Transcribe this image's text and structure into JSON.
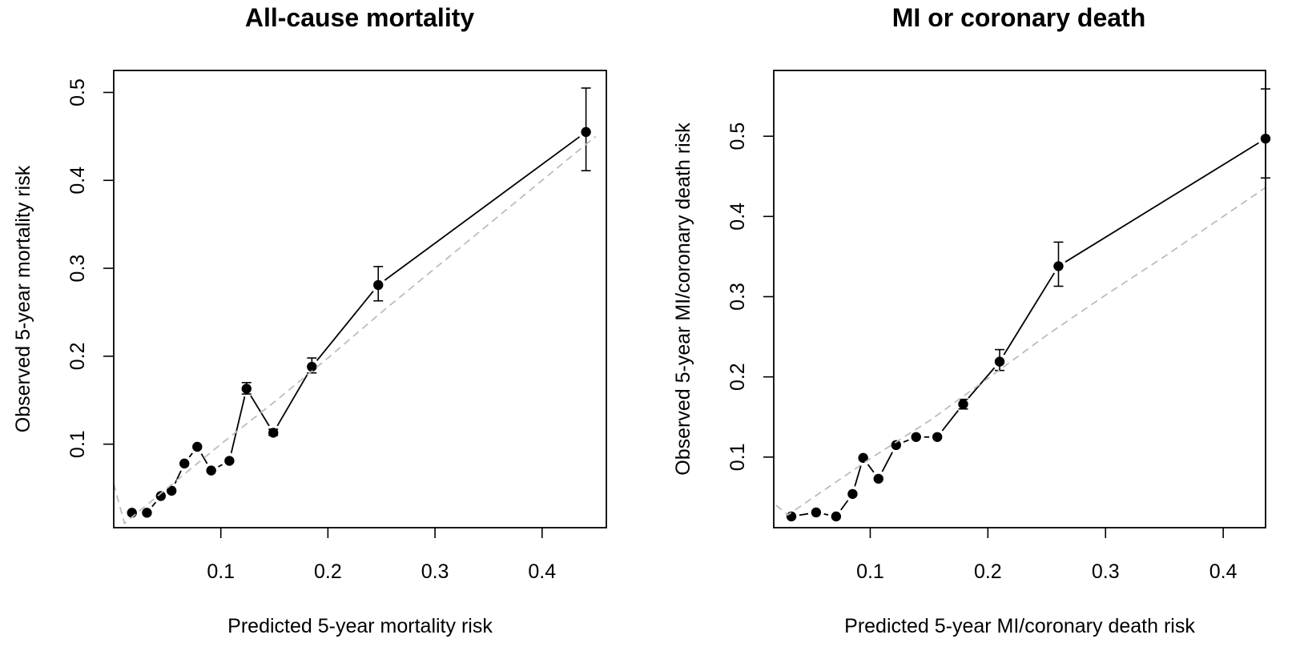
{
  "chart_data": [
    {
      "type": "scatter",
      "title": "All-cause mortality",
      "xlabel": "Predicted 5-year mortality risk",
      "ylabel": "Observed 5-year mortality risk",
      "xlim": [
        0.0,
        0.46
      ],
      "ylim": [
        0.005,
        0.525
      ],
      "xticks": [
        0.1,
        0.2,
        0.3,
        0.4
      ],
      "xtick_labels": [
        "0.1",
        "0.2",
        "0.3",
        "0.4"
      ],
      "yticks": [
        0.1,
        0.2,
        0.3,
        0.4,
        0.5
      ],
      "ytick_labels": [
        "0.1",
        "0.2",
        "0.3",
        "0.4",
        "0.5"
      ],
      "series": [
        {
          "name": "",
          "style": "points-with-error-bars-and-line",
          "color": "#000000",
          "x": [
            0.017,
            0.031,
            0.044,
            0.054,
            0.066,
            0.078,
            0.091,
            0.108,
            0.124,
            0.149,
            0.185,
            0.247,
            0.441
          ],
          "y": [
            0.022,
            0.022,
            0.041,
            0.047,
            0.078,
            0.097,
            0.07,
            0.081,
            0.163,
            0.113,
            0.188,
            0.281,
            0.455
          ],
          "err_low": [
            0.022,
            0.022,
            0.041,
            0.047,
            0.078,
            0.097,
            0.07,
            0.081,
            0.157,
            0.11,
            0.181,
            0.263,
            0.411
          ],
          "err_high": [
            0.022,
            0.022,
            0.041,
            0.047,
            0.078,
            0.097,
            0.07,
            0.081,
            0.17,
            0.117,
            0.198,
            0.302,
            0.505
          ]
        },
        {
          "name": "",
          "style": "dashed-reference",
          "color": "#bdbdbd",
          "x": [
            0.0,
            0.01,
            0.05,
            0.1,
            0.15,
            0.2,
            0.25,
            0.3,
            0.35,
            0.4,
            0.45
          ],
          "y": [
            0.055,
            0.01,
            0.05,
            0.1,
            0.148,
            0.198,
            0.25,
            0.3,
            0.35,
            0.4,
            0.45
          ]
        }
      ],
      "grid": false,
      "legend": "none"
    },
    {
      "type": "scatter",
      "title": "MI or coronary death",
      "xlabel": "Predicted 5-year MI/coronary death risk",
      "ylabel": "Observed 5-year MI/coronary death risk",
      "xlim": [
        0.018,
        0.436
      ],
      "ylim": [
        0.012,
        0.582
      ],
      "xticks": [
        0.1,
        0.2,
        0.3,
        0.4
      ],
      "xtick_labels": [
        "0.1",
        "0.2",
        "0.3",
        "0.4"
      ],
      "yticks": [
        0.1,
        0.2,
        0.3,
        0.4,
        0.5
      ],
      "ytick_labels": [
        "0.1",
        "0.2",
        "0.3",
        "0.4",
        "0.5"
      ],
      "series": [
        {
          "name": "",
          "style": "points-with-error-bars-and-line",
          "color": "#000000",
          "x": [
            0.033,
            0.054,
            0.071,
            0.085,
            0.094,
            0.107,
            0.122,
            0.139,
            0.157,
            0.179,
            0.21,
            0.26,
            0.436
          ],
          "y": [
            0.026,
            0.031,
            0.026,
            0.054,
            0.099,
            0.073,
            0.115,
            0.125,
            0.125,
            0.166,
            0.219,
            0.338,
            0.497
          ],
          "err_low": [
            0.026,
            0.031,
            0.026,
            0.054,
            0.099,
            0.073,
            0.115,
            0.125,
            0.125,
            0.16,
            0.208,
            0.313,
            0.448
          ],
          "err_high": [
            0.026,
            0.031,
            0.026,
            0.054,
            0.099,
            0.073,
            0.115,
            0.125,
            0.125,
            0.172,
            0.234,
            0.368,
            0.559
          ]
        },
        {
          "name": "",
          "style": "dashed-reference",
          "color": "#bdbdbd",
          "x": [
            0.02,
            0.03,
            0.05,
            0.1,
            0.15,
            0.2,
            0.25,
            0.3,
            0.35,
            0.4,
            0.436
          ],
          "y": [
            0.04,
            0.028,
            0.048,
            0.098,
            0.145,
            0.198,
            0.252,
            0.302,
            0.35,
            0.4,
            0.436
          ]
        }
      ],
      "grid": false,
      "legend": "none"
    }
  ]
}
